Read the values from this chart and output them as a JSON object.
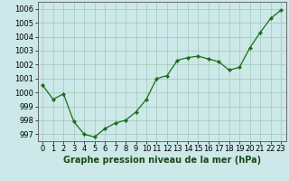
{
  "x": [
    0,
    1,
    2,
    3,
    4,
    5,
    6,
    7,
    8,
    9,
    10,
    11,
    12,
    13,
    14,
    15,
    16,
    17,
    18,
    19,
    20,
    21,
    22,
    23
  ],
  "y": [
    1000.5,
    999.5,
    999.9,
    997.9,
    997.0,
    996.8,
    997.4,
    997.8,
    998.0,
    998.6,
    999.5,
    1001.0,
    1001.2,
    1002.3,
    1002.5,
    1002.6,
    1002.4,
    1002.2,
    1001.6,
    1001.8,
    1003.2,
    1004.3,
    1005.3,
    1005.9
  ],
  "line_color": "#1a6e1a",
  "marker": "D",
  "marker_size": 2.2,
  "background_color": "#cce8e8",
  "grid_color": "#a0c8b8",
  "xlabel": "Graphe pression niveau de la mer (hPa)",
  "xlabel_fontsize": 7,
  "ylabel_ticks": [
    997,
    998,
    999,
    1000,
    1001,
    1002,
    1003,
    1004,
    1005,
    1006
  ],
  "xlim": [
    -0.5,
    23.5
  ],
  "ylim": [
    996.5,
    1006.5
  ],
  "tick_fontsize": 6.0
}
